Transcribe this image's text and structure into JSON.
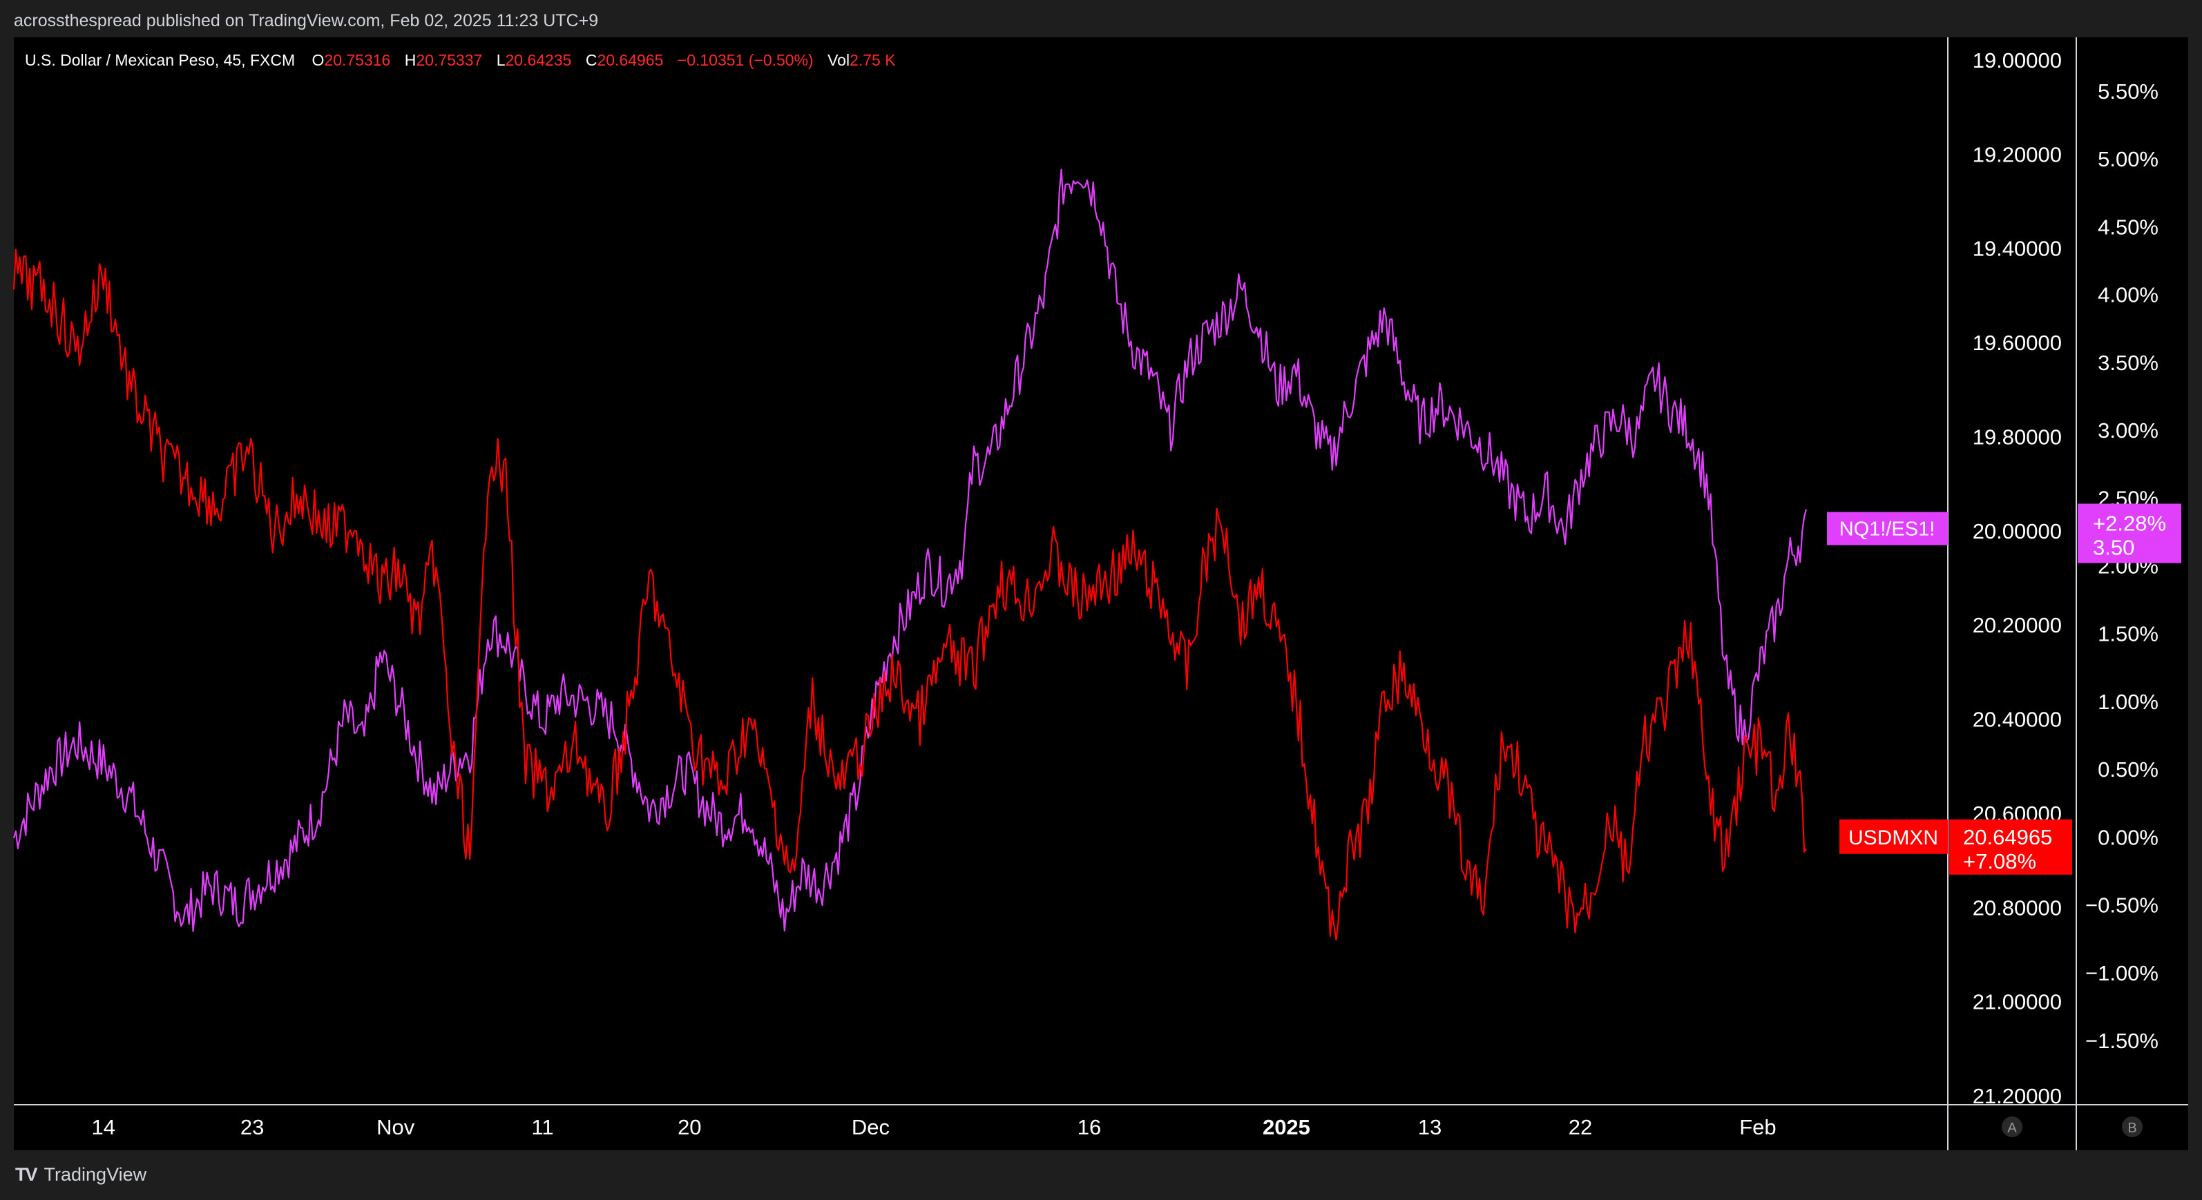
{
  "header": {
    "published_text": "acrossthespread published on TradingView.com, Feb 02, 2025 11:23 UTC+9"
  },
  "legend": {
    "symbol": "U.S. Dollar / Mexican Peso, 45, FXCM",
    "open_label": "O",
    "open": "20.75316",
    "high_label": "H",
    "high": "20.75337",
    "low_label": "L",
    "low": "20.64235",
    "close_label": "C",
    "close": "20.64965",
    "change": "−0.10351 (−0.50%)",
    "vol_label": "Vol",
    "vol": "2.75 K"
  },
  "footer": {
    "logo_text": "TradingView",
    "scale_a": "A",
    "scale_b": "B"
  },
  "colors": {
    "usdmxn": "#ff0000",
    "ratio": "#e040fb",
    "background": "#000000",
    "panel": "#1e1e1e",
    "text": "#d1d4dc"
  },
  "chart_data": {
    "type": "line",
    "x": [
      "Oct 14",
      "Oct 23",
      "Nov",
      "Nov 11",
      "Nov 20",
      "Dec",
      "Dec 16",
      "2025",
      "Jan 13",
      "Jan 22",
      "Feb"
    ],
    "x_ticks": [
      "14",
      "23",
      "Nov",
      "11",
      "20",
      "Dec",
      "16",
      "2025",
      "13",
      "22",
      "Feb"
    ],
    "series": [
      {
        "name": "USDMXN",
        "axis": "left-price",
        "unit": "MXN per USD",
        "points": [
          [
            0,
            19.45
          ],
          [
            0.02,
            19.5
          ],
          [
            0.035,
            19.62
          ],
          [
            0.05,
            19.45
          ],
          [
            0.065,
            19.7
          ],
          [
            0.085,
            19.85
          ],
          [
            0.1,
            19.9
          ],
          [
            0.115,
            19.95
          ],
          [
            0.13,
            19.82
          ],
          [
            0.145,
            20.0
          ],
          [
            0.16,
            19.92
          ],
          [
            0.175,
            20.0
          ],
          [
            0.19,
            19.98
          ],
          [
            0.205,
            20.12
          ],
          [
            0.215,
            20.08
          ],
          [
            0.225,
            20.2
          ],
          [
            0.235,
            20.05
          ],
          [
            0.245,
            20.48
          ],
          [
            0.255,
            20.7
          ],
          [
            0.265,
            19.82
          ],
          [
            0.275,
            19.9
          ],
          [
            0.285,
            20.5
          ],
          [
            0.3,
            20.55
          ],
          [
            0.315,
            20.45
          ],
          [
            0.33,
            20.62
          ],
          [
            0.345,
            20.35
          ],
          [
            0.355,
            20.1
          ],
          [
            0.365,
            20.25
          ],
          [
            0.38,
            20.45
          ],
          [
            0.395,
            20.55
          ],
          [
            0.41,
            20.4
          ],
          [
            0.425,
            20.6
          ],
          [
            0.435,
            20.75
          ],
          [
            0.445,
            20.35
          ],
          [
            0.46,
            20.55
          ],
          [
            0.475,
            20.45
          ],
          [
            0.49,
            20.3
          ],
          [
            0.505,
            20.4
          ],
          [
            0.52,
            20.25
          ],
          [
            0.535,
            20.3
          ],
          [
            0.55,
            20.1
          ],
          [
            0.565,
            20.15
          ],
          [
            0.58,
            20.05
          ],
          [
            0.595,
            20.15
          ],
          [
            0.61,
            20.1
          ],
          [
            0.625,
            20.05
          ],
          [
            0.64,
            20.15
          ],
          [
            0.655,
            20.3
          ],
          [
            0.665,
            20.05
          ],
          [
            0.675,
            19.98
          ],
          [
            0.685,
            20.2
          ],
          [
            0.695,
            20.1
          ],
          [
            0.705,
            20.22
          ],
          [
            0.715,
            20.35
          ],
          [
            0.725,
            20.6
          ],
          [
            0.735,
            20.85
          ],
          [
            0.745,
            20.7
          ],
          [
            0.755,
            20.6
          ],
          [
            0.765,
            20.35
          ],
          [
            0.775,
            20.3
          ],
          [
            0.79,
            20.45
          ],
          [
            0.8,
            20.55
          ],
          [
            0.81,
            20.72
          ],
          [
            0.82,
            20.8
          ],
          [
            0.83,
            20.45
          ],
          [
            0.84,
            20.5
          ],
          [
            0.85,
            20.65
          ],
          [
            0.86,
            20.72
          ],
          [
            0.87,
            20.82
          ],
          [
            0.88,
            20.78
          ],
          [
            0.89,
            20.6
          ],
          [
            0.9,
            20.72
          ],
          [
            0.91,
            20.45
          ],
          [
            0.92,
            20.38
          ],
          [
            0.93,
            20.28
          ],
          [
            0.935,
            20.2
          ],
          [
            0.945,
            20.55
          ],
          [
            0.955,
            20.7
          ],
          [
            0.965,
            20.48
          ],
          [
            0.975,
            20.45
          ],
          [
            0.985,
            20.6
          ],
          [
            0.99,
            20.4
          ],
          [
            1.0,
            20.64965
          ]
        ]
      },
      {
        "name": "NQ1!/ES1!",
        "axis": "right-percent",
        "unit": "%",
        "points": [
          [
            0,
            0.0
          ],
          [
            0.02,
            0.5
          ],
          [
            0.035,
            0.7
          ],
          [
            0.05,
            0.55
          ],
          [
            0.065,
            0.3
          ],
          [
            0.08,
            -0.15
          ],
          [
            0.095,
            -0.6
          ],
          [
            0.11,
            -0.35
          ],
          [
            0.125,
            -0.5
          ],
          [
            0.14,
            -0.3
          ],
          [
            0.155,
            -0.1
          ],
          [
            0.17,
            0.2
          ],
          [
            0.185,
            0.9
          ],
          [
            0.195,
            0.7
          ],
          [
            0.205,
            1.35
          ],
          [
            0.215,
            1.0
          ],
          [
            0.225,
            0.6
          ],
          [
            0.235,
            0.3
          ],
          [
            0.245,
            0.55
          ],
          [
            0.255,
            0.65
          ],
          [
            0.265,
            1.55
          ],
          [
            0.275,
            1.45
          ],
          [
            0.285,
            1.1
          ],
          [
            0.295,
            0.85
          ],
          [
            0.305,
            1.05
          ],
          [
            0.32,
            1.0
          ],
          [
            0.335,
            0.85
          ],
          [
            0.345,
            0.55
          ],
          [
            0.355,
            0.2
          ],
          [
            0.365,
            0.35
          ],
          [
            0.375,
            0.5
          ],
          [
            0.385,
            0.25
          ],
          [
            0.395,
            0.1
          ],
          [
            0.41,
            0.2
          ],
          [
            0.42,
            -0.15
          ],
          [
            0.43,
            -0.6
          ],
          [
            0.44,
            -0.25
          ],
          [
            0.45,
            -0.35
          ],
          [
            0.46,
            -0.1
          ],
          [
            0.47,
            0.3
          ],
          [
            0.48,
            1.0
          ],
          [
            0.49,
            1.45
          ],
          [
            0.5,
            1.7
          ],
          [
            0.51,
            2.0
          ],
          [
            0.52,
            1.85
          ],
          [
            0.53,
            2.1
          ],
          [
            0.535,
            2.75
          ],
          [
            0.545,
            2.8
          ],
          [
            0.555,
            3.2
          ],
          [
            0.565,
            3.6
          ],
          [
            0.575,
            4.0
          ],
          [
            0.585,
            4.8
          ],
          [
            0.595,
            4.95
          ],
          [
            0.605,
            4.7
          ],
          [
            0.615,
            4.0
          ],
          [
            0.625,
            3.6
          ],
          [
            0.635,
            3.4
          ],
          [
            0.645,
            3.0
          ],
          [
            0.655,
            3.5
          ],
          [
            0.665,
            3.7
          ],
          [
            0.675,
            3.85
          ],
          [
            0.685,
            4.05
          ],
          [
            0.695,
            3.75
          ],
          [
            0.705,
            3.3
          ],
          [
            0.715,
            3.45
          ],
          [
            0.725,
            3.05
          ],
          [
            0.735,
            2.8
          ],
          [
            0.745,
            3.2
          ],
          [
            0.755,
            3.55
          ],
          [
            0.765,
            3.85
          ],
          [
            0.775,
            3.4
          ],
          [
            0.785,
            3.05
          ],
          [
            0.795,
            3.2
          ],
          [
            0.805,
            3.1
          ],
          [
            0.815,
            2.95
          ],
          [
            0.825,
            2.8
          ],
          [
            0.835,
            2.55
          ],
          [
            0.845,
            2.35
          ],
          [
            0.855,
            2.55
          ],
          [
            0.865,
            2.25
          ],
          [
            0.875,
            2.7
          ],
          [
            0.885,
            2.95
          ],
          [
            0.895,
            3.1
          ],
          [
            0.905,
            2.95
          ],
          [
            0.915,
            3.4
          ],
          [
            0.925,
            3.15
          ],
          [
            0.935,
            3.0
          ],
          [
            0.945,
            2.6
          ],
          [
            0.955,
            1.2
          ],
          [
            0.965,
            0.75
          ],
          [
            0.975,
            1.3
          ],
          [
            0.985,
            1.7
          ],
          [
            0.99,
            2.05
          ],
          [
            1.0,
            2.28
          ]
        ]
      }
    ],
    "left_axis": {
      "ticks": [
        "19.00000",
        "19.20000",
        "19.40000",
        "19.60000",
        "19.80000",
        "20.00000",
        "20.20000",
        "20.40000",
        "20.60000",
        "20.80000",
        "21.00000",
        "21.20000"
      ],
      "range": [
        19.0,
        21.2
      ],
      "inverted": true
    },
    "right_axis": {
      "ticks": [
        "5.50%",
        "5.00%",
        "4.50%",
        "4.00%",
        "3.50%",
        "3.00%",
        "2.50%",
        "2.00%",
        "1.50%",
        "1.00%",
        "0.50%",
        "0.00%",
        "−0.50%",
        "−1.00%",
        "−1.50%"
      ],
      "range": [
        -1.5,
        5.5
      ]
    },
    "labels": {
      "ratio_name": "NQ1!/ES1!",
      "ratio_pct": "+2.28%",
      "ratio_value": "3.50",
      "usdmxn_name": "USDMXN",
      "usdmxn_price": "20.64965",
      "usdmxn_pct": "+7.08%"
    },
    "grid": false
  }
}
